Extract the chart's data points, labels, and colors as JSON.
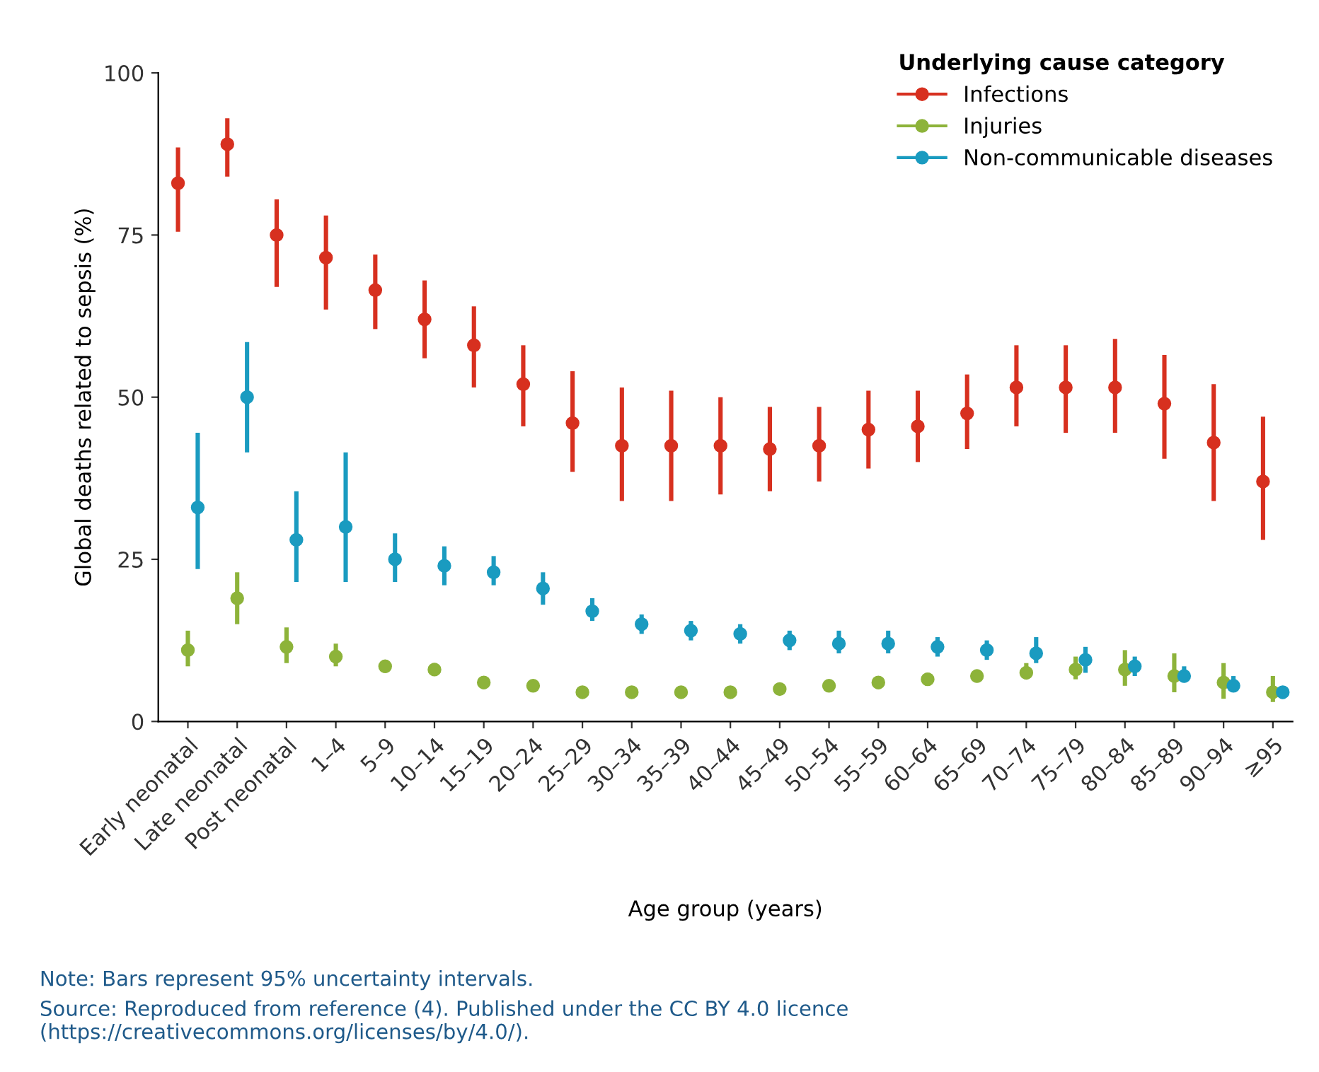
{
  "chart_data": {
    "type": "scatter",
    "xlabel": "Age group (years)",
    "ylabel": "Global deaths related to sepsis (%)",
    "legend_title": "Underlying cause category",
    "legend": "top right",
    "grid": false,
    "marker": "circle",
    "categories": [
      "Early neonatal",
      "Late neonatal",
      "Post neonatal",
      "1–4",
      "5–9",
      "10–14",
      "15–19",
      "20–24",
      "25–29",
      "30–34",
      "35–39",
      "40–44",
      "45–49",
      "50–54",
      "55–59",
      "60–64",
      "65–69",
      "70–74",
      "75–79",
      "80–84",
      "85–89",
      "90–94",
      "≥95"
    ],
    "ylim": [
      0,
      100
    ],
    "yticks": [
      0,
      25,
      50,
      75,
      100
    ],
    "series": [
      {
        "name": "Infections",
        "color": "#d7301f",
        "values": [
          83,
          89,
          75,
          71.5,
          66.5,
          62,
          58,
          52,
          46,
          42.5,
          42.5,
          42.5,
          42,
          42.5,
          45,
          45.5,
          47.5,
          51.5,
          51.5,
          51.5,
          49,
          43,
          37
        ],
        "errors": [
          [
            75.5,
            88.5
          ],
          [
            84,
            93
          ],
          [
            67,
            80.5
          ],
          [
            63.5,
            78
          ],
          [
            60.5,
            72
          ],
          [
            56,
            68
          ],
          [
            51.5,
            64
          ],
          [
            45.5,
            58
          ],
          [
            38.5,
            54
          ],
          [
            34,
            51.5
          ],
          [
            34,
            51
          ],
          [
            35,
            50
          ],
          [
            35.5,
            48.5
          ],
          [
            37,
            48.5
          ],
          [
            39,
            51
          ],
          [
            40,
            51
          ],
          [
            42,
            53.5
          ],
          [
            45.5,
            58
          ],
          [
            44.5,
            58
          ],
          [
            44.5,
            59
          ],
          [
            40.5,
            56.5
          ],
          [
            34,
            52
          ],
          [
            28,
            47
          ]
        ]
      },
      {
        "name": "Injuries",
        "color": "#8db33a",
        "values": [
          11,
          19,
          11.5,
          10,
          8.5,
          8,
          6,
          5.5,
          4.5,
          4.5,
          4.5,
          4.5,
          5,
          5.5,
          6,
          6.5,
          7,
          7.5,
          8,
          8,
          7,
          6,
          4.5
        ],
        "errors": [
          [
            8.5,
            14
          ],
          [
            15,
            23
          ],
          [
            9,
            14.5
          ],
          [
            8.5,
            12
          ],
          [
            7.5,
            9.5
          ],
          [
            7,
            9
          ],
          [
            5,
            7
          ],
          [
            5,
            6
          ],
          null,
          null,
          null,
          null,
          null,
          null,
          [
            5,
            7
          ],
          [
            5.5,
            7.5
          ],
          [
            6,
            8
          ],
          [
            6.5,
            9
          ],
          [
            6.5,
            10
          ],
          [
            5.5,
            11
          ],
          [
            4.5,
            10.5
          ],
          [
            3.5,
            9
          ],
          [
            3,
            7
          ]
        ]
      },
      {
        "name": "Non-communicable diseases",
        "color": "#1a9bc0",
        "values": [
          33,
          50,
          28,
          30,
          25,
          24,
          23,
          20.5,
          17,
          15,
          14,
          13.5,
          12.5,
          12,
          12,
          11.5,
          11,
          10.5,
          9.5,
          8.5,
          7,
          5.5,
          4.5
        ],
        "errors": [
          [
            23.5,
            44.5
          ],
          [
            41.5,
            58.5
          ],
          [
            21.5,
            35.5
          ],
          [
            21.5,
            41.5
          ],
          [
            21.5,
            29
          ],
          [
            21,
            27
          ],
          [
            21,
            25.5
          ],
          [
            18,
            23
          ],
          [
            15.5,
            19
          ],
          [
            13.5,
            16.5
          ],
          [
            12.5,
            15.5
          ],
          [
            12,
            15
          ],
          [
            11,
            14
          ],
          [
            10.5,
            14
          ],
          [
            10.5,
            14
          ],
          [
            10,
            13
          ],
          [
            9.5,
            12.5
          ],
          [
            9,
            13
          ],
          [
            7.5,
            11.5
          ],
          [
            7,
            10
          ],
          [
            6,
            8.5
          ],
          [
            4.5,
            7
          ],
          [
            3.5,
            5
          ]
        ]
      }
    ],
    "annotations": [
      "Note: Bars represent 95% uncertainty intervals.",
      "Source: Reproduced from reference (4). Published under the CC BY 4.0 licence (https://creativecommons.org/licenses/by/4.0/)."
    ]
  }
}
